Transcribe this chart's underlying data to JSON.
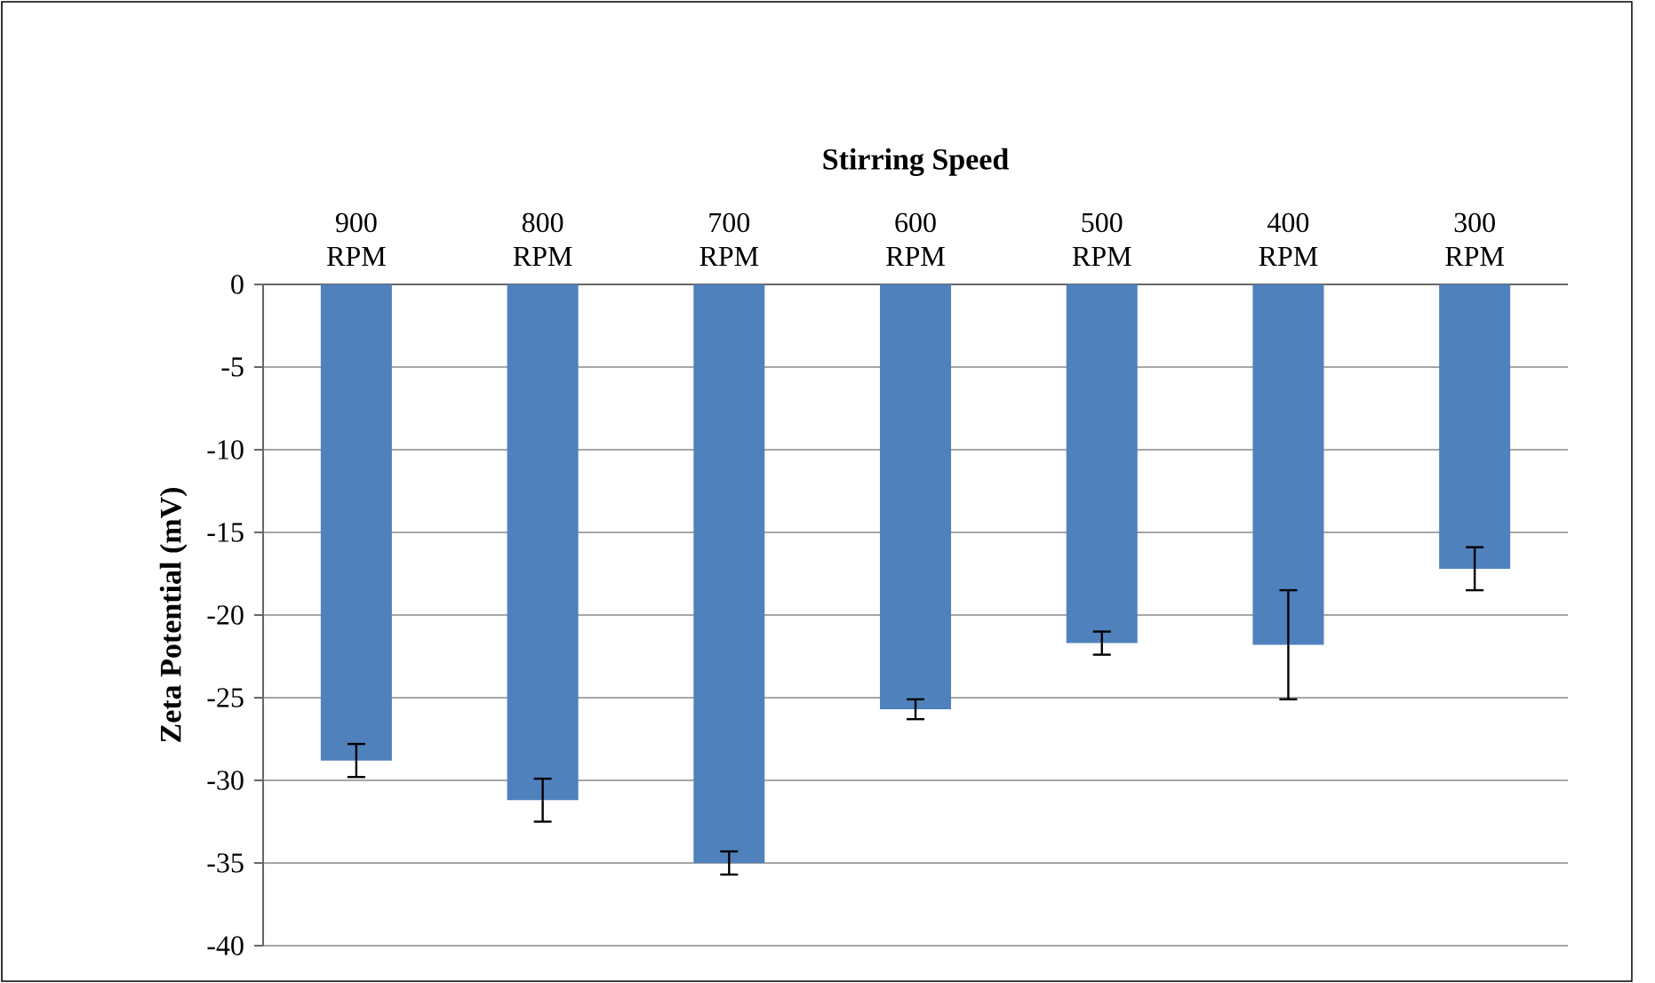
{
  "chart_data": {
    "type": "bar",
    "xlabel": "Stirring Speed",
    "ylabel": "Zeta Potential (mV)",
    "categories": [
      "900 RPM",
      "800 RPM",
      "700 RPM",
      "600 RPM",
      "500 RPM",
      "400 RPM",
      "300 RPM"
    ],
    "values": [
      -28.8,
      -31.2,
      -35.0,
      -25.7,
      -21.7,
      -21.8,
      -17.2
    ],
    "errors": [
      1.0,
      1.3,
      0.7,
      0.6,
      0.7,
      3.3,
      1.3
    ],
    "color": "#4f81bd",
    "ylim": [
      -40,
      0
    ],
    "yticks": [
      -40,
      -35,
      -30,
      -25,
      -20,
      -15,
      -10,
      -5,
      0
    ],
    "grid": "y"
  }
}
